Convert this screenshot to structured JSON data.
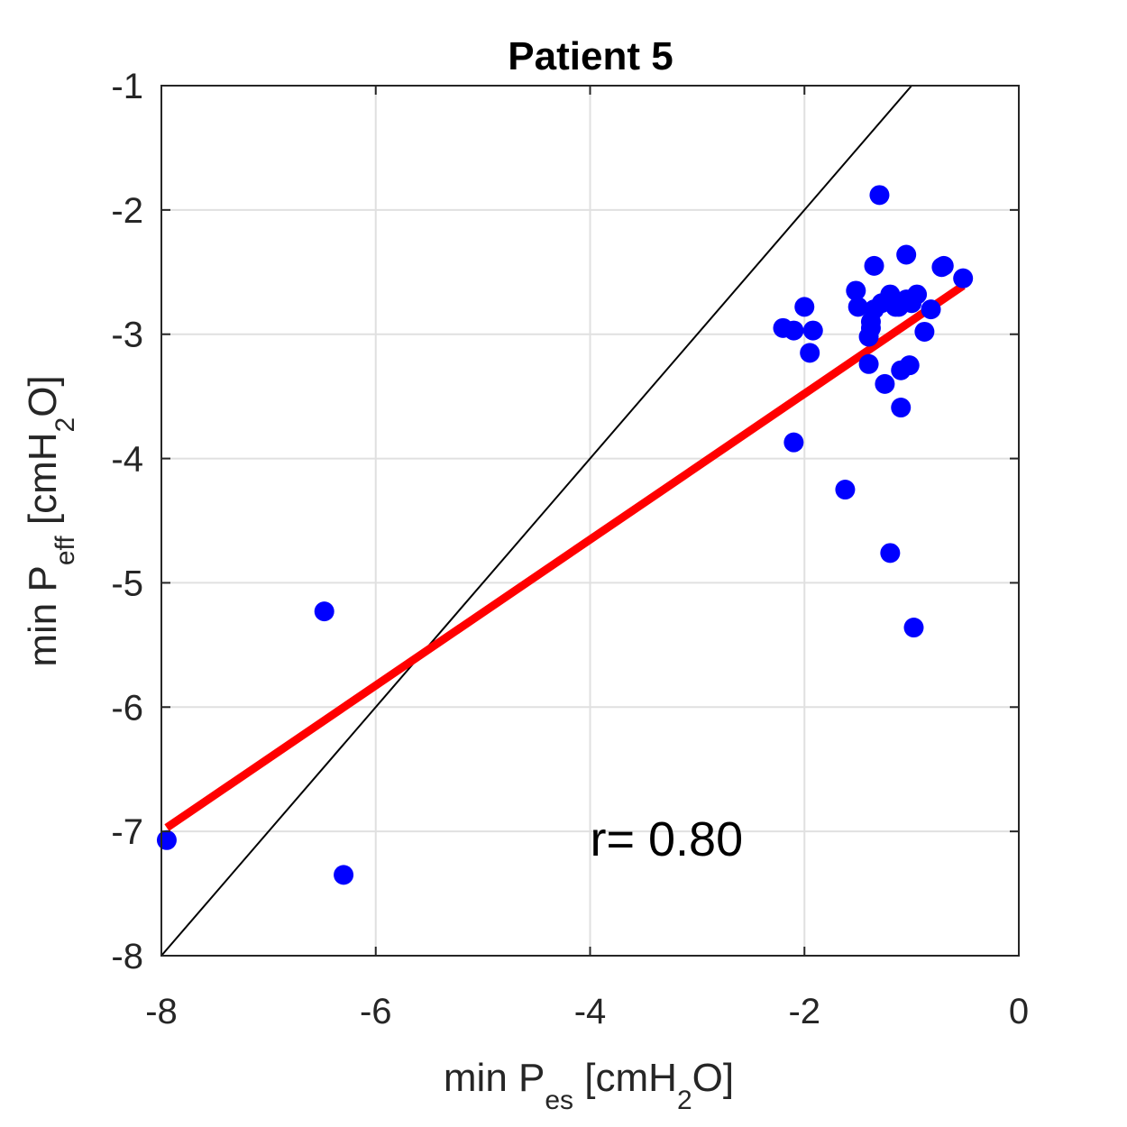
{
  "chart_data": {
    "type": "scatter",
    "title": "Patient 5",
    "xlabel": {
      "main": "min P",
      "sub": "es",
      "unit_prefix": " [cmH",
      "unit_sub": "2",
      "unit_suffix": "O]"
    },
    "ylabel": {
      "main": "min P",
      "sub": "eff",
      "unit_prefix": " [cmH",
      "unit_sub": "2",
      "unit_suffix": "O]"
    },
    "xlim": [
      -8,
      0
    ],
    "ylim": [
      -8,
      -1
    ],
    "xticks": [
      -8,
      -6,
      -4,
      -2,
      0
    ],
    "xtick_labels": [
      "-8",
      "-6",
      "-4",
      "-2",
      "0"
    ],
    "yticks": [
      -8,
      -7,
      -6,
      -5,
      -4,
      -3,
      -2,
      -1
    ],
    "ytick_labels": [
      "-8",
      "-7",
      "-6",
      "-5",
      "-4",
      "-3",
      "-2",
      "-1"
    ],
    "grid": true,
    "annotation": {
      "text": "r= 0.80",
      "x": -4.0,
      "y": -7.05
    },
    "colors": {
      "points": "#0000ff",
      "fit": "#ff0000",
      "identity": "#000000",
      "grid": "#e0e0e0",
      "axes": "#262626"
    },
    "series": [
      {
        "kind": "points",
        "x": [
          -7.95,
          -6.48,
          -6.3,
          -2.2,
          -2.1,
          -2.0,
          -1.92,
          -1.95,
          -2.1,
          -1.62,
          -1.5,
          -1.52,
          -1.35,
          -1.3,
          -1.38,
          -1.4,
          -1.38,
          -1.4,
          -1.35,
          -1.28,
          -1.25,
          -1.2,
          -1.2,
          -1.15,
          -1.1,
          -1.05,
          -1.05,
          -1.0,
          -1.12,
          -1.1,
          -1.02,
          -0.95,
          -0.88,
          -0.82,
          -0.72,
          -0.7,
          -0.52,
          -1.2,
          -0.98
        ],
        "y": [
          -7.07,
          -5.23,
          -7.35,
          -2.95,
          -2.97,
          -2.78,
          -2.97,
          -3.15,
          -3.87,
          -4.25,
          -2.78,
          -2.65,
          -2.45,
          -1.88,
          -2.9,
          -3.02,
          -2.95,
          -3.24,
          -2.8,
          -2.75,
          -3.4,
          -2.72,
          -2.68,
          -2.78,
          -3.59,
          -2.36,
          -2.72,
          -2.75,
          -2.78,
          -3.29,
          -3.25,
          -2.68,
          -2.98,
          -2.8,
          -2.46,
          -2.45,
          -2.55,
          -4.76,
          -5.36
        ]
      },
      {
        "kind": "fit",
        "x": [
          -7.95,
          -0.52
        ],
        "y": [
          -6.97,
          -2.61
        ]
      },
      {
        "kind": "identity",
        "x": [
          -8,
          -1
        ],
        "y": [
          -8,
          -1
        ]
      }
    ]
  }
}
